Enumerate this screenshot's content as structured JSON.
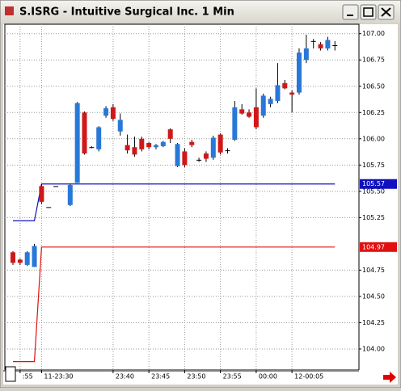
{
  "window_title": "S.ISRG - Intuitive Surgical Inc. 1 Min",
  "chart_data": {
    "type": "candlestick",
    "categories": [
      null,
      ":55",
      null,
      null,
      "11-23:30",
      null,
      null,
      null,
      null,
      null,
      null,
      null,
      null,
      null,
      "23:40",
      null,
      null,
      null,
      null,
      "23:45",
      null,
      null,
      null,
      null,
      "23:50",
      null,
      null,
      null,
      null,
      "23:55",
      null,
      null,
      null,
      null,
      "00:00",
      null,
      null,
      null,
      null,
      "12-00:05",
      null,
      null,
      null,
      null,
      null,
      null
    ],
    "open": [
      104.92,
      104.85,
      104.8,
      104.78,
      105.55,
      105.35,
      105.55,
      null,
      105.37,
      105.58,
      106.25,
      105.92,
      105.9,
      106.22,
      106.3,
      106.07,
      105.94,
      105.92,
      106.0,
      105.96,
      105.92,
      105.93,
      106.09,
      105.74,
      105.88,
      105.97,
      105.8,
      105.86,
      105.82,
      106.04,
      105.89,
      105.99,
      106.28,
      106.25,
      106.3,
      106.22,
      106.33,
      106.36,
      106.53,
      106.44,
      106.44,
      106.75,
      106.93,
      106.9,
      106.86,
      106.89
    ],
    "high": [
      104.93,
      104.86,
      104.93,
      105.0,
      105.57,
      105.35,
      105.55,
      null,
      105.57,
      106.35,
      106.26,
      105.93,
      106.12,
      106.31,
      106.33,
      106.24,
      106.04,
      106.02,
      106.02,
      105.97,
      105.95,
      105.98,
      106.1,
      105.96,
      105.91,
      105.99,
      105.82,
      105.88,
      106.03,
      106.05,
      105.91,
      106.36,
      106.33,
      106.28,
      106.48,
      106.43,
      106.4,
      106.72,
      106.56,
      106.46,
      106.86,
      106.99,
      106.95,
      106.92,
      106.97,
      106.93
    ],
    "low": [
      104.8,
      104.8,
      104.79,
      104.78,
      105.38,
      105.35,
      105.55,
      null,
      105.36,
      105.58,
      105.85,
      105.91,
      105.88,
      106.2,
      106.17,
      106.03,
      105.86,
      105.83,
      105.88,
      105.9,
      105.9,
      105.92,
      105.96,
      105.73,
      105.73,
      105.92,
      105.78,
      105.78,
      105.8,
      105.85,
      105.86,
      105.98,
      106.23,
      106.2,
      106.09,
      106.2,
      106.3,
      106.34,
      106.47,
      106.25,
      106.42,
      106.72,
      106.86,
      106.84,
      106.84,
      106.84
    ],
    "close": [
      104.82,
      104.82,
      104.92,
      104.98,
      105.4,
      105.35,
      105.55,
      null,
      105.56,
      106.34,
      105.86,
      105.92,
      106.11,
      106.29,
      106.19,
      106.18,
      105.89,
      105.85,
      105.9,
      105.92,
      105.94,
      105.97,
      106.0,
      105.95,
      105.75,
      105.94,
      105.8,
      105.81,
      106.01,
      105.87,
      105.89,
      106.3,
      106.24,
      106.21,
      106.11,
      106.41,
      106.38,
      106.51,
      106.48,
      106.42,
      106.82,
      106.86,
      106.93,
      106.86,
      106.94,
      106.89
    ],
    "up_color": "#2878d8",
    "down_color": "#d01818",
    "flat_color": "#000000",
    "lines": [
      {
        "color": "#1010c0",
        "price_label": "105.57",
        "values": [
          105.22,
          105.22,
          105.22,
          105.22,
          105.57,
          105.57,
          105.57,
          105.57,
          105.57,
          105.57,
          105.57,
          105.57,
          105.57,
          105.57,
          105.57,
          105.57,
          105.57,
          105.57,
          105.57,
          105.57,
          105.57,
          105.57,
          105.57,
          105.57,
          105.57,
          105.57,
          105.57,
          105.57,
          105.57,
          105.57,
          105.57,
          105.57,
          105.57,
          105.57,
          105.57,
          105.57,
          105.57,
          105.57,
          105.57,
          105.57,
          105.57,
          105.57,
          105.57,
          105.57,
          105.57,
          105.57
        ]
      },
      {
        "color": "#e01010",
        "price_label": "104.97",
        "values": [
          103.88,
          103.88,
          103.88,
          103.88,
          104.97,
          104.97,
          104.97,
          104.97,
          104.97,
          104.97,
          104.97,
          104.97,
          104.97,
          104.97,
          104.97,
          104.97,
          104.97,
          104.97,
          104.97,
          104.97,
          104.97,
          104.97,
          104.97,
          104.97,
          104.97,
          104.97,
          104.97,
          104.97,
          104.97,
          104.97,
          104.97,
          104.97,
          104.97,
          104.97,
          104.97,
          104.97,
          104.97,
          104.97,
          104.97,
          104.97,
          104.97,
          104.97,
          104.97,
          104.97,
          104.97,
          104.97
        ]
      }
    ],
    "ylim": [
      103.8,
      107.09
    ],
    "yticks": [
      {
        "value": 104,
        "label": "104.00"
      },
      {
        "value": 104.25,
        "label": "104.25"
      },
      {
        "value": 104.5,
        "label": "104.50"
      },
      {
        "value": 104.75,
        "label": "104.75"
      },
      {
        "value": 105.25,
        "label": "105.25"
      },
      {
        "value": 105.5,
        "label": "105.50"
      },
      {
        "value": 105.75,
        "label": "105.75"
      },
      {
        "value": 106,
        "label": "106.00"
      },
      {
        "value": 106.25,
        "label": "106.25"
      },
      {
        "value": 106.5,
        "label": "106.50"
      },
      {
        "value": 106.75,
        "label": "106.75"
      },
      {
        "value": 107,
        "label": "107.00"
      }
    ],
    "grid": true
  }
}
